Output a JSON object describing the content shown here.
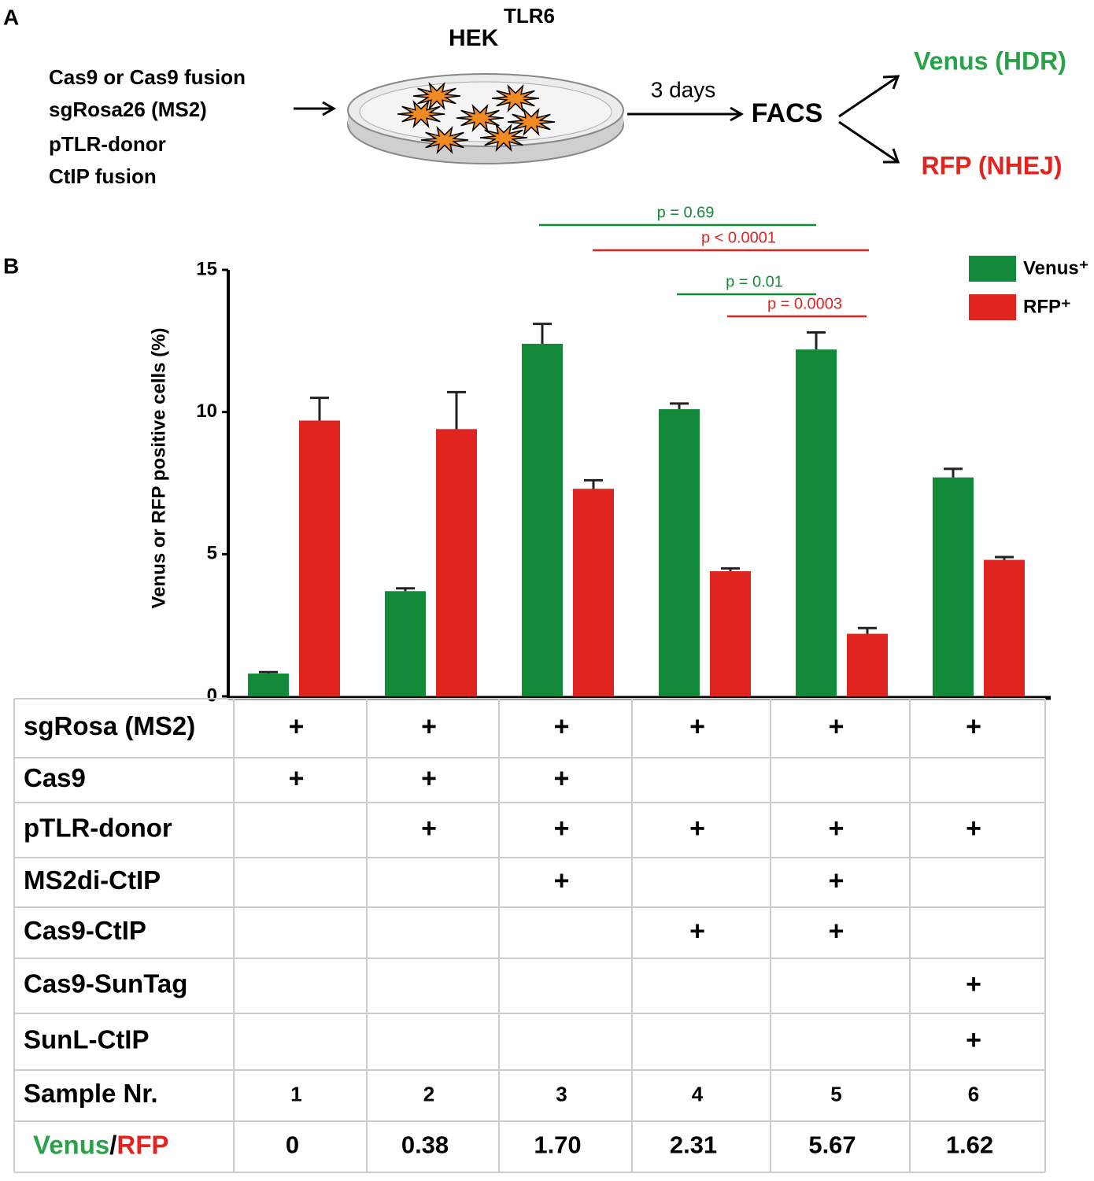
{
  "panel_a": {
    "label": "A",
    "cell_line": "HEK",
    "cell_line_superscript": "TLR6",
    "inputs": [
      "Cas9 or Cas9 fusion",
      "sgRosa26 (MS2)",
      "pTLR-donor",
      "CtIP fusion"
    ],
    "time": "3 days",
    "assay": "FACS",
    "outcomes": [
      {
        "text": "Venus (HDR)",
        "color": "#2aa24a"
      },
      {
        "text": "RFP (NHEJ)",
        "color": "#e0241f"
      }
    ]
  },
  "chart_data": {
    "type": "bar",
    "panel_label": "B",
    "y_label": "Venus or RFP positive cells (%)",
    "series": [
      {
        "name": "Venus⁺",
        "color": "#138a3a",
        "values": [
          0.8,
          3.7,
          12.4,
          10.1,
          12.2,
          7.7
        ],
        "errors": [
          0.05,
          0.1,
          0.7,
          0.2,
          0.6,
          0.3
        ]
      },
      {
        "name": "RFP⁺",
        "color": "#e0241f",
        "values": [
          9.7,
          9.4,
          7.3,
          4.4,
          2.2,
          4.8
        ],
        "errors": [
          0.8,
          1.3,
          0.3,
          0.1,
          0.2,
          0.1
        ]
      }
    ],
    "ylim": [
      0,
      15
    ],
    "yticks": [
      0,
      5,
      10,
      15
    ],
    "legend": "upper right",
    "annotations": [
      {
        "text": "p = 0.69",
        "color": "#138a3a"
      },
      {
        "text": "p < 0.0001",
        "color": "#e0241f"
      },
      {
        "text": "p = 0.01",
        "color": "#138a3a"
      },
      {
        "text": "p = 0.0003",
        "color": "#e0241f"
      }
    ]
  },
  "table": {
    "rows": [
      [
        "sgRosa (MS2)",
        "+",
        "+",
        "+",
        "+",
        "+",
        "+"
      ],
      [
        "Cas9",
        "+",
        "+",
        "+",
        null,
        null,
        null
      ],
      [
        "pTLR-donor",
        null,
        "+",
        "+",
        "+",
        "+",
        "+"
      ],
      [
        "MS2di-CtIP",
        null,
        null,
        "+",
        null,
        "+",
        null
      ],
      [
        "Cas9-CtIP",
        null,
        null,
        null,
        "+",
        "+",
        null
      ],
      [
        "Cas9-SunTag",
        null,
        null,
        null,
        null,
        null,
        "+"
      ],
      [
        "SunL-CtIP",
        null,
        null,
        null,
        null,
        null,
        "+"
      ],
      [
        "Sample Nr.",
        "1",
        "2",
        "3",
        "4",
        "5",
        "6"
      ]
    ],
    "ratio_label": [
      {
        "text": "Venus",
        "color": "#2aa24a"
      },
      {
        "text": "/",
        "color": "#000000"
      },
      {
        "text": "RFP",
        "color": "#e0241f"
      }
    ],
    "ratio_values": [
      "0",
      "0.38",
      "1.70",
      "2.31",
      "5.67",
      "1.62"
    ]
  }
}
